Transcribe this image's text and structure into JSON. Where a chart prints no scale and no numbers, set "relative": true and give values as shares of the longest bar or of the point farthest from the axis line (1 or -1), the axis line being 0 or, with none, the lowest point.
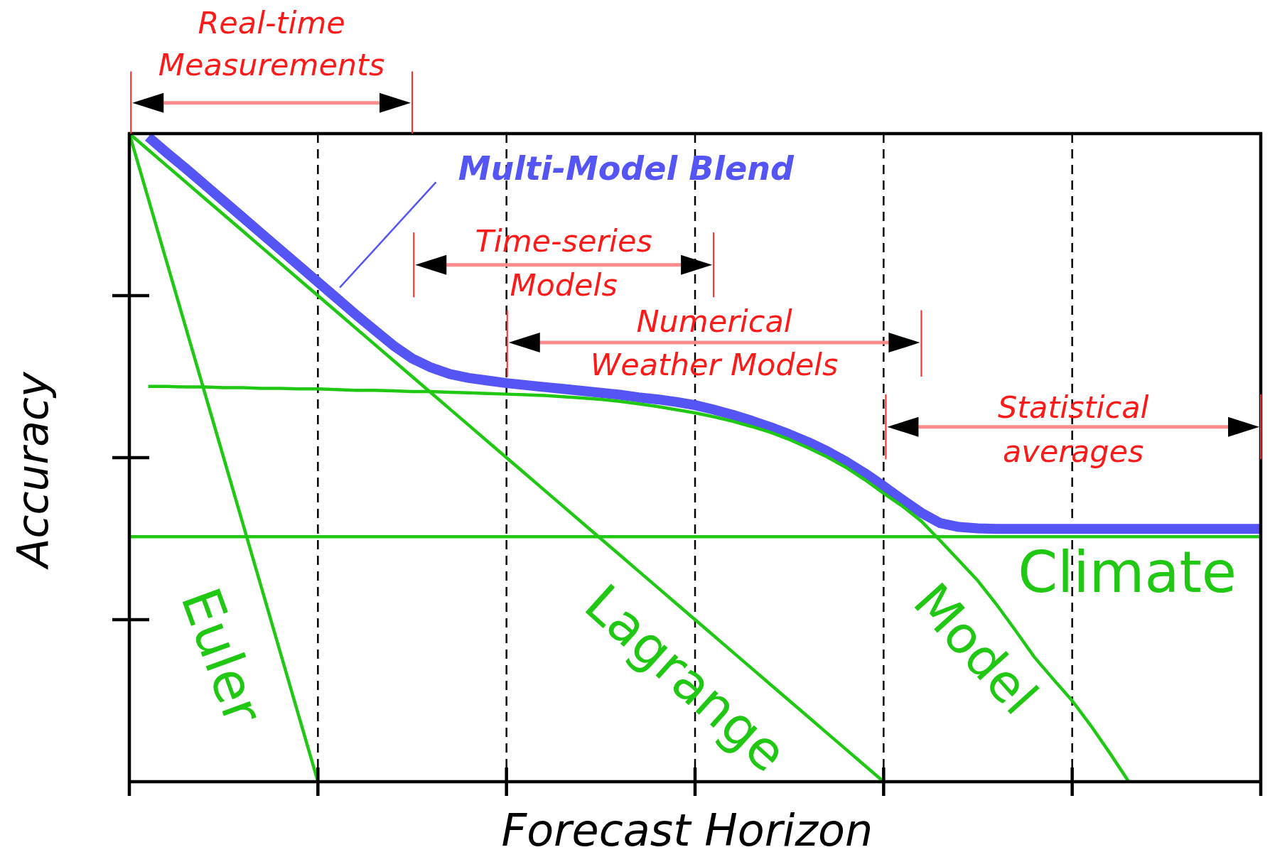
{
  "chart_data": {
    "type": "line",
    "relative": true,
    "xlabel": "Forecast Horizon",
    "ylabel": "Accuracy",
    "grid": "x",
    "categories": [
      null,
      null,
      null,
      null,
      null,
      null,
      null,
      null,
      null,
      null,
      null,
      null,
      null,
      null,
      null,
      null,
      null,
      null,
      null,
      null,
      null,
      null,
      null,
      null,
      null,
      null,
      null,
      null,
      null,
      null,
      null,
      null,
      null,
      null,
      null,
      null,
      null,
      null,
      null,
      null,
      null,
      null,
      null,
      null,
      null,
      null,
      null,
      null,
      null,
      null,
      null,
      null,
      null,
      null,
      null,
      null,
      null,
      null,
      null,
      null,
      null
    ],
    "series": [
      {
        "name": "Multi-Model Blend",
        "color": "#5555f5",
        "values": [
          null,
          0.995,
          0.97,
          0.946,
          0.921,
          0.896,
          0.871,
          0.846,
          0.821,
          0.796,
          0.771,
          0.746,
          0.721,
          0.697,
          0.673,
          0.653,
          0.639,
          0.629,
          0.623,
          0.619,
          0.615,
          0.612,
          0.609,
          0.606,
          0.603,
          0.6,
          0.597,
          0.593,
          0.59,
          0.586,
          0.581,
          0.574,
          0.566,
          0.557,
          0.547,
          0.536,
          0.524,
          0.51,
          0.494,
          0.476,
          0.456,
          0.435,
          0.415,
          0.399,
          0.393,
          0.391,
          0.39,
          0.39,
          0.39,
          0.39,
          0.39,
          0.39,
          0.39,
          0.39,
          0.39,
          0.39,
          0.39,
          0.39,
          0.39,
          0.39,
          0.39
        ]
      },
      {
        "name": "Euler",
        "color": "#20c814",
        "values": [
          1,
          0.9,
          0.8,
          0.7,
          0.6,
          0.5,
          0.4,
          0.3,
          0.2,
          0.1,
          0,
          null,
          null,
          null,
          null,
          null,
          null,
          null,
          null,
          null,
          null,
          null,
          null,
          null,
          null,
          null,
          null,
          null,
          null,
          null,
          null,
          null,
          null,
          null,
          null,
          null,
          null,
          null,
          null,
          null,
          null,
          null,
          null,
          null,
          null,
          null,
          null,
          null,
          null,
          null,
          null,
          null,
          null,
          null,
          null,
          null,
          null,
          null,
          null,
          null,
          null
        ]
      },
      {
        "name": "Lagrange",
        "color": "#20c814",
        "values": [
          1,
          0.975,
          0.95,
          0.925,
          0.9,
          0.875,
          0.85,
          0.825,
          0.8,
          0.775,
          0.75,
          0.725,
          0.7,
          0.675,
          0.65,
          0.625,
          0.6,
          0.575,
          0.55,
          0.525,
          0.5,
          0.475,
          0.45,
          0.425,
          0.4,
          0.375,
          0.35,
          0.325,
          0.3,
          0.275,
          0.25,
          0.225,
          0.2,
          0.175,
          0.15,
          0.125,
          0.1,
          0.075,
          0.05,
          0.025,
          0,
          null,
          null,
          null,
          null,
          null,
          null,
          null,
          null,
          null,
          null,
          null,
          null,
          null,
          null,
          null,
          null,
          null,
          null,
          null,
          null
        ]
      },
      {
        "name": "Model",
        "color": "#20c814",
        "values": [
          null,
          0.61,
          0.61,
          0.609,
          0.609,
          0.608,
          0.608,
          0.607,
          0.607,
          0.606,
          0.606,
          0.605,
          0.604,
          0.604,
          0.603,
          0.602,
          0.602,
          0.601,
          0.6,
          0.599,
          0.598,
          0.597,
          0.596,
          0.594,
          0.592,
          0.59,
          0.587,
          0.583,
          0.579,
          0.574,
          0.569,
          0.563,
          0.556,
          0.548,
          0.539,
          0.528,
          0.515,
          0.501,
          0.485,
          0.466,
          0.445,
          0.425,
          0.402,
          0.372,
          0.341,
          0.31,
          0.273,
          0.233,
          0.192,
          0.158,
          0.125,
          0.086,
          0.044,
          0,
          null,
          null,
          null,
          null,
          null,
          null,
          null
        ]
      },
      {
        "name": "Climate",
        "color": "#20c814",
        "values": [
          0.378,
          0.378,
          0.378,
          0.378,
          0.378,
          0.378,
          0.378,
          0.378,
          0.378,
          0.378,
          0.378,
          0.378,
          0.378,
          0.378,
          0.378,
          0.378,
          0.378,
          0.378,
          0.378,
          0.378,
          0.378,
          0.378,
          0.378,
          0.378,
          0.378,
          0.378,
          0.378,
          0.378,
          0.378,
          0.378,
          0.378,
          0.378,
          0.378,
          0.378,
          0.378,
          0.378,
          0.378,
          0.378,
          0.378,
          0.378,
          0.378,
          0.378,
          0.378,
          0.378,
          0.378,
          0.378,
          0.378,
          0.378,
          0.378,
          0.378,
          0.378,
          0.378,
          0.378,
          0.378,
          0.378,
          0.378,
          0.378,
          0.378,
          0.378,
          0.378,
          0.378
        ]
      }
    ],
    "annotations": [
      "Real-time Measurements",
      "Time-series Models",
      "Numerical Weather Models",
      "Statistical averages"
    ]
  }
}
